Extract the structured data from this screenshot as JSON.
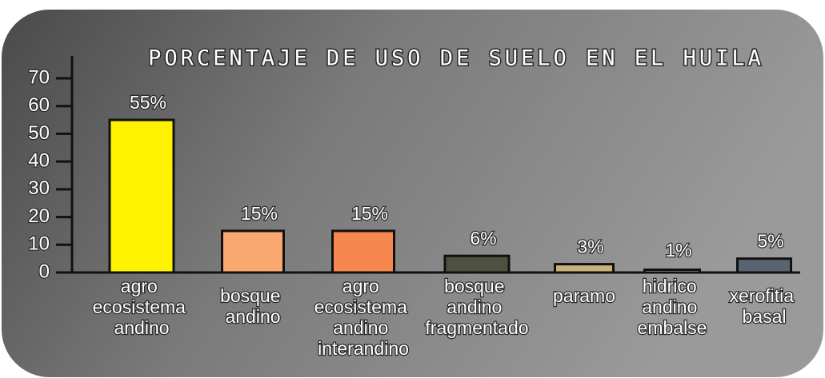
{
  "chart_data": {
    "type": "bar",
    "title": "PORCENTAJE DE USO DE SUELO EN EL HUILA",
    "categories": [
      "agro ecosistema andino",
      "bosque andino",
      "agro ecosistema andino interandino",
      "bosque andino fragmentado",
      "paramo",
      "hidrico andino embalse",
      "xerofitia basal"
    ],
    "values": [
      55,
      15,
      15,
      6,
      3,
      1,
      5
    ],
    "value_labels": [
      "55%",
      "15%",
      "15%",
      "6%",
      "3%",
      "1%",
      "5%"
    ],
    "colors": [
      "#fff200",
      "#f9a870",
      "#f5874f",
      "#4f5040",
      "#c9b27a",
      "#a7d7ea",
      "#5a6470"
    ],
    "ylim": [
      0,
      70
    ],
    "yticks": [
      0,
      10,
      20,
      30,
      40,
      50,
      60,
      70
    ]
  }
}
